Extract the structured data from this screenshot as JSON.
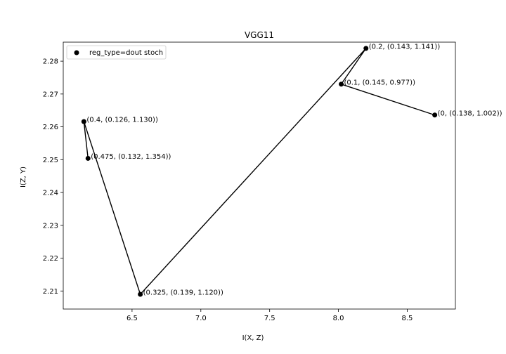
{
  "chart_data": {
    "type": "line",
    "title": "VGG11",
    "xlabel": "I(X, Z)",
    "ylabel": "I(Z, Y)",
    "xlim": [
      6.0,
      8.85
    ],
    "ylim": [
      2.2045,
      2.2858
    ],
    "xticks": [
      6.5,
      7.0,
      7.5,
      8.0,
      8.5
    ],
    "xtick_labels": [
      "6.5",
      "7.0",
      "7.5",
      "8.0",
      "8.5"
    ],
    "yticks": [
      2.21,
      2.22,
      2.23,
      2.24,
      2.25,
      2.26,
      2.27,
      2.28
    ],
    "ytick_labels": [
      "2.21",
      "2.22",
      "2.23",
      "2.24",
      "2.25",
      "2.26",
      "2.27",
      "2.28"
    ],
    "grid": false,
    "legend_position": "top-left",
    "series": [
      {
        "name": "reg_type=dout stoch",
        "color": "#000000",
        "marker": "circle",
        "points": [
          {
            "x": 8.7,
            "y": 2.2636,
            "label": "(0, (0.138, 1.002))"
          },
          {
            "x": 8.02,
            "y": 2.273,
            "label": "(0.1, (0.145, 0.977))"
          },
          {
            "x": 8.2,
            "y": 2.2839,
            "label": "(0.2, (0.143, 1.141))"
          },
          {
            "x": 6.56,
            "y": 2.209,
            "label": "(0.325, (0.139, 1.120))"
          },
          {
            "x": 6.15,
            "y": 2.2616,
            "label": "(0.4, (0.126, 1.130))"
          },
          {
            "x": 6.18,
            "y": 2.2504,
            "label": "(0.475, (0.132, 1.354))"
          }
        ]
      }
    ]
  }
}
